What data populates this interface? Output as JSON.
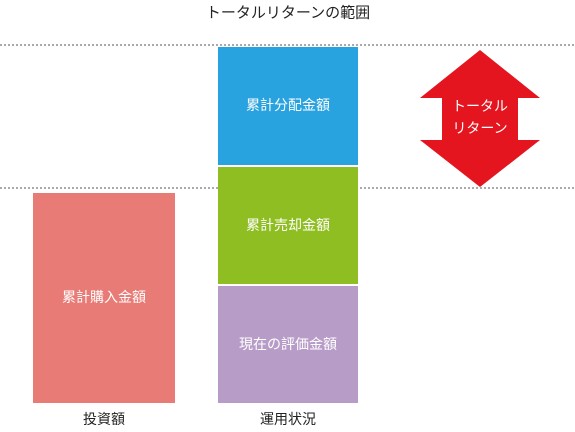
{
  "title": "トータルリターンの範囲",
  "investment": {
    "block": "累計購入金額",
    "label": "投資額"
  },
  "operation": {
    "blocks": [
      "累計分配金額",
      "累計売却金額",
      "現在の評価金額"
    ],
    "label": "運用状況"
  },
  "arrow": {
    "lines": [
      "トータル",
      "リターン"
    ]
  }
}
